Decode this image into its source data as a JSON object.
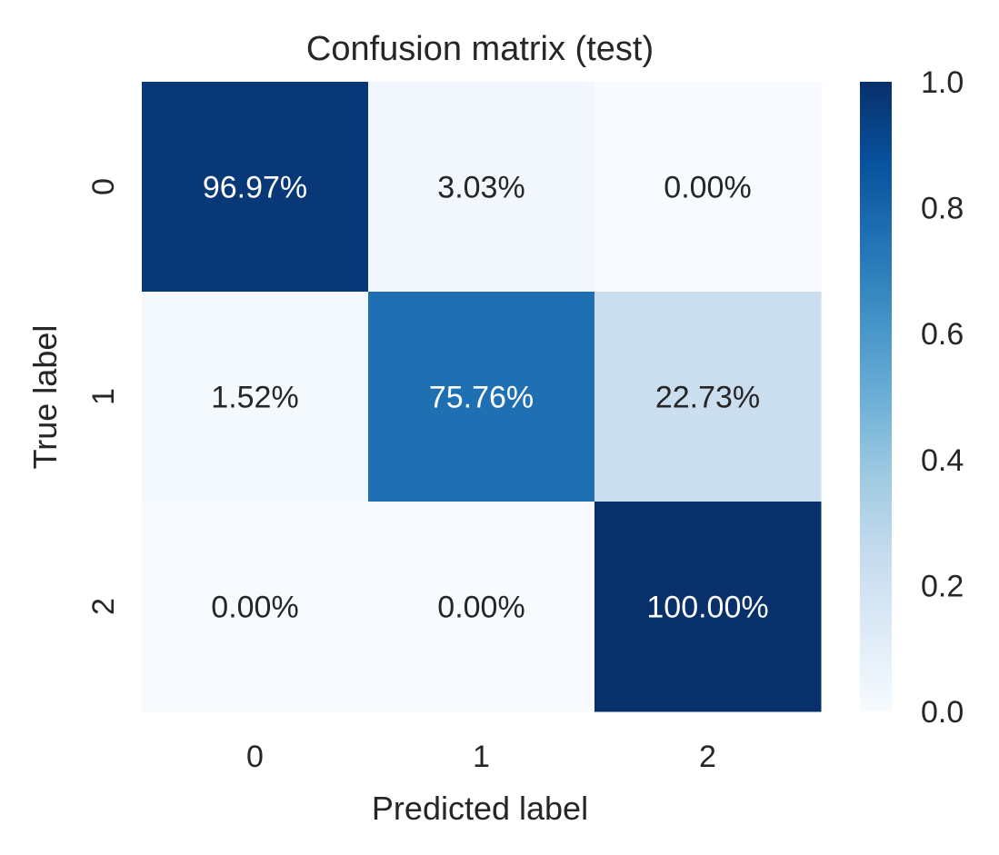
{
  "chart_data": {
    "type": "heatmap",
    "title": "Confusion matrix (test)",
    "xlabel": "Predicted label",
    "ylabel": "True label",
    "x_categories": [
      "0",
      "1",
      "2"
    ],
    "y_categories": [
      "0",
      "1",
      "2"
    ],
    "values": [
      [
        0.9697,
        0.0303,
        0.0
      ],
      [
        0.0152,
        0.7576,
        0.2273
      ],
      [
        0.0,
        0.0,
        1.0
      ]
    ],
    "annotations": [
      [
        "96.97%",
        "3.03%",
        "0.00%"
      ],
      [
        "1.52%",
        "75.76%",
        "22.73%"
      ],
      [
        "0.00%",
        "0.00%",
        "100.00%"
      ]
    ],
    "colormap": "Blues",
    "vmin": 0.0,
    "vmax": 1.0,
    "colorbar": {
      "ticks": [
        "0.0",
        "0.2",
        "0.4",
        "0.6",
        "0.8",
        "1.0"
      ]
    },
    "grid": false
  }
}
